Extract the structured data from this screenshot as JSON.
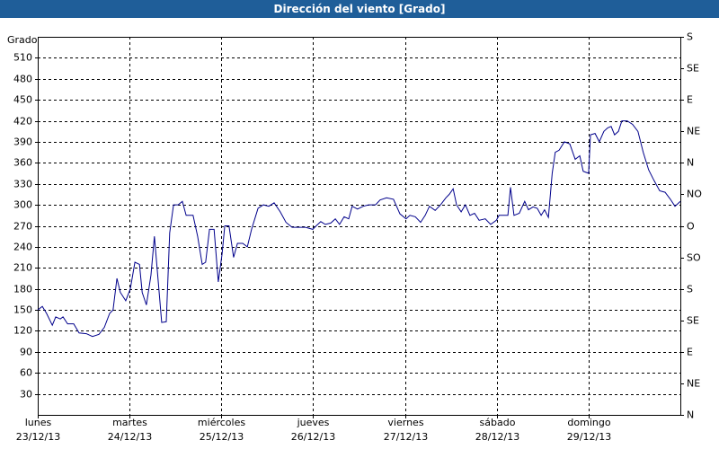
{
  "chart_data": {
    "type": "line",
    "title": "Dirección del viento [Grado]",
    "y_label": "Grado",
    "xlim": [
      0,
      168
    ],
    "xticks": [
      {
        "value": 0,
        "label": "lunes 23/12/13"
      },
      {
        "value": 24,
        "label": "martes 24/12/13"
      },
      {
        "value": 48,
        "label": "miércoles 25/12/13"
      },
      {
        "value": 72,
        "label": "jueves 26/12/13"
      },
      {
        "value": 96,
        "label": "viernes 27/12/13"
      },
      {
        "value": 120,
        "label": "sábado 28/12/13"
      },
      {
        "value": 144,
        "label": "domingo 29/12/13"
      }
    ],
    "ylim": [
      0,
      540
    ],
    "yticks": [
      30,
      60,
      90,
      120,
      150,
      180,
      210,
      240,
      270,
      300,
      330,
      360,
      390,
      420,
      450,
      480,
      510
    ],
    "y2lim": [
      0,
      540
    ],
    "y2ticks": [
      {
        "value": 0,
        "label": "N"
      },
      {
        "value": 45,
        "label": "NE"
      },
      {
        "value": 90,
        "label": "E"
      },
      {
        "value": 135,
        "label": "SE"
      },
      {
        "value": 180,
        "label": "S"
      },
      {
        "value": 225,
        "label": "SO"
      },
      {
        "value": 270,
        "label": "O"
      },
      {
        "value": 315,
        "label": "NO"
      },
      {
        "value": 360,
        "label": "N"
      },
      {
        "value": 405,
        "label": "NE"
      },
      {
        "value": 450,
        "label": "E"
      },
      {
        "value": 495,
        "label": "SE"
      },
      {
        "value": 540,
        "label": "S"
      }
    ],
    "grid": true,
    "x": [
      0,
      1.2,
      2.3,
      3.8,
      4.7,
      5.9,
      6.6,
      7.8,
      9.4,
      10.8,
      12.7,
      14.3,
      16,
      17.4,
      18.8,
      19.7,
      20.7,
      21.6,
      23,
      24.2,
      25.4,
      26.6,
      27.3,
      28.4,
      29.6,
      30.5,
      31.5,
      32.4,
      33.6,
      34.5,
      35.5,
      36.7,
      37.8,
      38.8,
      40.6,
      41.8,
      43,
      43.9,
      44.9,
      46.1,
      47.2,
      48.2,
      48.9,
      50,
      51.2,
      52.2,
      53.6,
      54.8,
      55.9,
      57.6,
      59,
      60.4,
      61.8,
      63.4,
      64.9,
      66.5,
      68.4,
      70,
      71.9,
      72.8,
      74,
      75.2,
      76.6,
      77.8,
      78.9,
      80.1,
      81.3,
      82.2,
      83.6,
      85.1,
      86.5,
      88.3,
      89.5,
      91.2,
      93,
      94.7,
      96.3,
      97.3,
      98.7,
      100.1,
      101.3,
      102.4,
      103.9,
      105.3,
      106.7,
      107.6,
      108.6,
      109.5,
      110.7,
      111.8,
      113,
      114.2,
      115.4,
      117,
      118.4,
      119.9,
      120.6,
      121.7,
      122.9,
      123.6,
      124.5,
      125.9,
      127.3,
      128.3,
      129.5,
      130.6,
      131.6,
      132.5,
      133.5,
      134.5,
      135.3,
      136.3,
      137.7,
      139.1,
      140.5,
      141.7,
      142.6,
      144,
      144.5,
      145.7,
      146.8,
      148,
      149,
      149.9,
      150.8,
      151.8,
      152.7,
      154.1,
      155.5,
      156.9,
      158.3,
      159.7,
      161.1,
      162.6,
      164,
      165.4,
      166.6,
      168
    ],
    "series": [
      {
        "color": "#00008b",
        "values": [
          150,
          155,
          145,
          128,
          140,
          137,
          140,
          130,
          130,
          117,
          116,
          112,
          115,
          125,
          145,
          150,
          195,
          175,
          163,
          180,
          218,
          215,
          175,
          157,
          200,
          255,
          190,
          132,
          133,
          260,
          300,
          300,
          305,
          285,
          285,
          255,
          215,
          218,
          265,
          265,
          190,
          230,
          270,
          270,
          225,
          245,
          245,
          240,
          265,
          295,
          300,
          298,
          303,
          290,
          275,
          268,
          268,
          268,
          265,
          270,
          276,
          272,
          274,
          280,
          272,
          283,
          280,
          298,
          294,
          298,
          300,
          300,
          307,
          310,
          308,
          287,
          280,
          285,
          283,
          275,
          285,
          298,
          292,
          300,
          310,
          315,
          323,
          300,
          290,
          300,
          285,
          288,
          278,
          280,
          272,
          278,
          285,
          285,
          285,
          325,
          285,
          288,
          305,
          293,
          297,
          295,
          285,
          293,
          282,
          345,
          375,
          378,
          390,
          387,
          365,
          370,
          348,
          345,
          400,
          402,
          390,
          405,
          410,
          412,
          400,
          405,
          420,
          420,
          415,
          405,
          375,
          350,
          335,
          320,
          318,
          308,
          298,
          305
        ]
      }
    ]
  }
}
